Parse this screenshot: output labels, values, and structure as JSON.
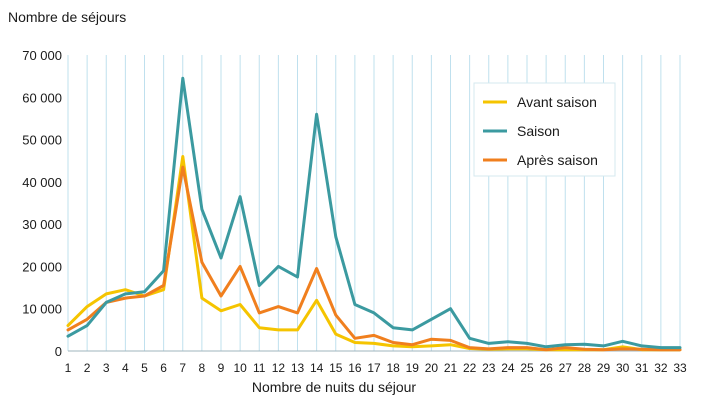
{
  "chart_data": {
    "type": "line",
    "ylabel": "Nombre de séjours",
    "xlabel": "Nombre de nuits du séjour",
    "x": [
      1,
      2,
      3,
      4,
      5,
      6,
      7,
      8,
      9,
      10,
      11,
      12,
      13,
      14,
      15,
      16,
      17,
      18,
      19,
      20,
      21,
      22,
      23,
      24,
      25,
      26,
      27,
      28,
      29,
      30,
      31,
      32,
      33
    ],
    "ylim": [
      0,
      70000
    ],
    "yticks": [
      0,
      10000,
      20000,
      30000,
      40000,
      50000,
      60000,
      70000
    ],
    "ytick_labels": [
      "0",
      "10 000",
      "20 000",
      "30 000",
      "40 000",
      "50 000",
      "60 000",
      "70 000"
    ],
    "grid": "vertical",
    "legend_position": "top-right",
    "series": [
      {
        "name": "Avant saison",
        "color": "#f5c400",
        "values": [
          6000,
          10500,
          13500,
          14500,
          13000,
          14500,
          46000,
          12500,
          9500,
          11000,
          5500,
          5000,
          5000,
          12000,
          4000,
          2000,
          1800,
          1200,
          1000,
          1200,
          1500,
          600,
          400,
          500,
          500,
          300,
          300,
          300,
          300,
          1000,
          300,
          300,
          300
        ]
      },
      {
        "name": "Saison",
        "color": "#3b9aa0",
        "values": [
          3500,
          6000,
          11500,
          13500,
          14000,
          19000,
          64500,
          33500,
          22000,
          36500,
          15500,
          20000,
          17500,
          56000,
          27000,
          11000,
          9000,
          5500,
          5000,
          7500,
          10000,
          3000,
          1800,
          2200,
          1800,
          1000,
          1500,
          1600,
          1200,
          2300,
          1200,
          800,
          800
        ]
      },
      {
        "name": "Après saison",
        "color": "#f07f1e",
        "values": [
          5000,
          7500,
          11500,
          12500,
          13000,
          15500,
          43500,
          21000,
          13000,
          20000,
          9000,
          10500,
          9000,
          19500,
          8500,
          3000,
          3700,
          2000,
          1500,
          2800,
          2500,
          800,
          500,
          800,
          800,
          300,
          800,
          400,
          300,
          500,
          400,
          300,
          300
        ]
      }
    ]
  }
}
